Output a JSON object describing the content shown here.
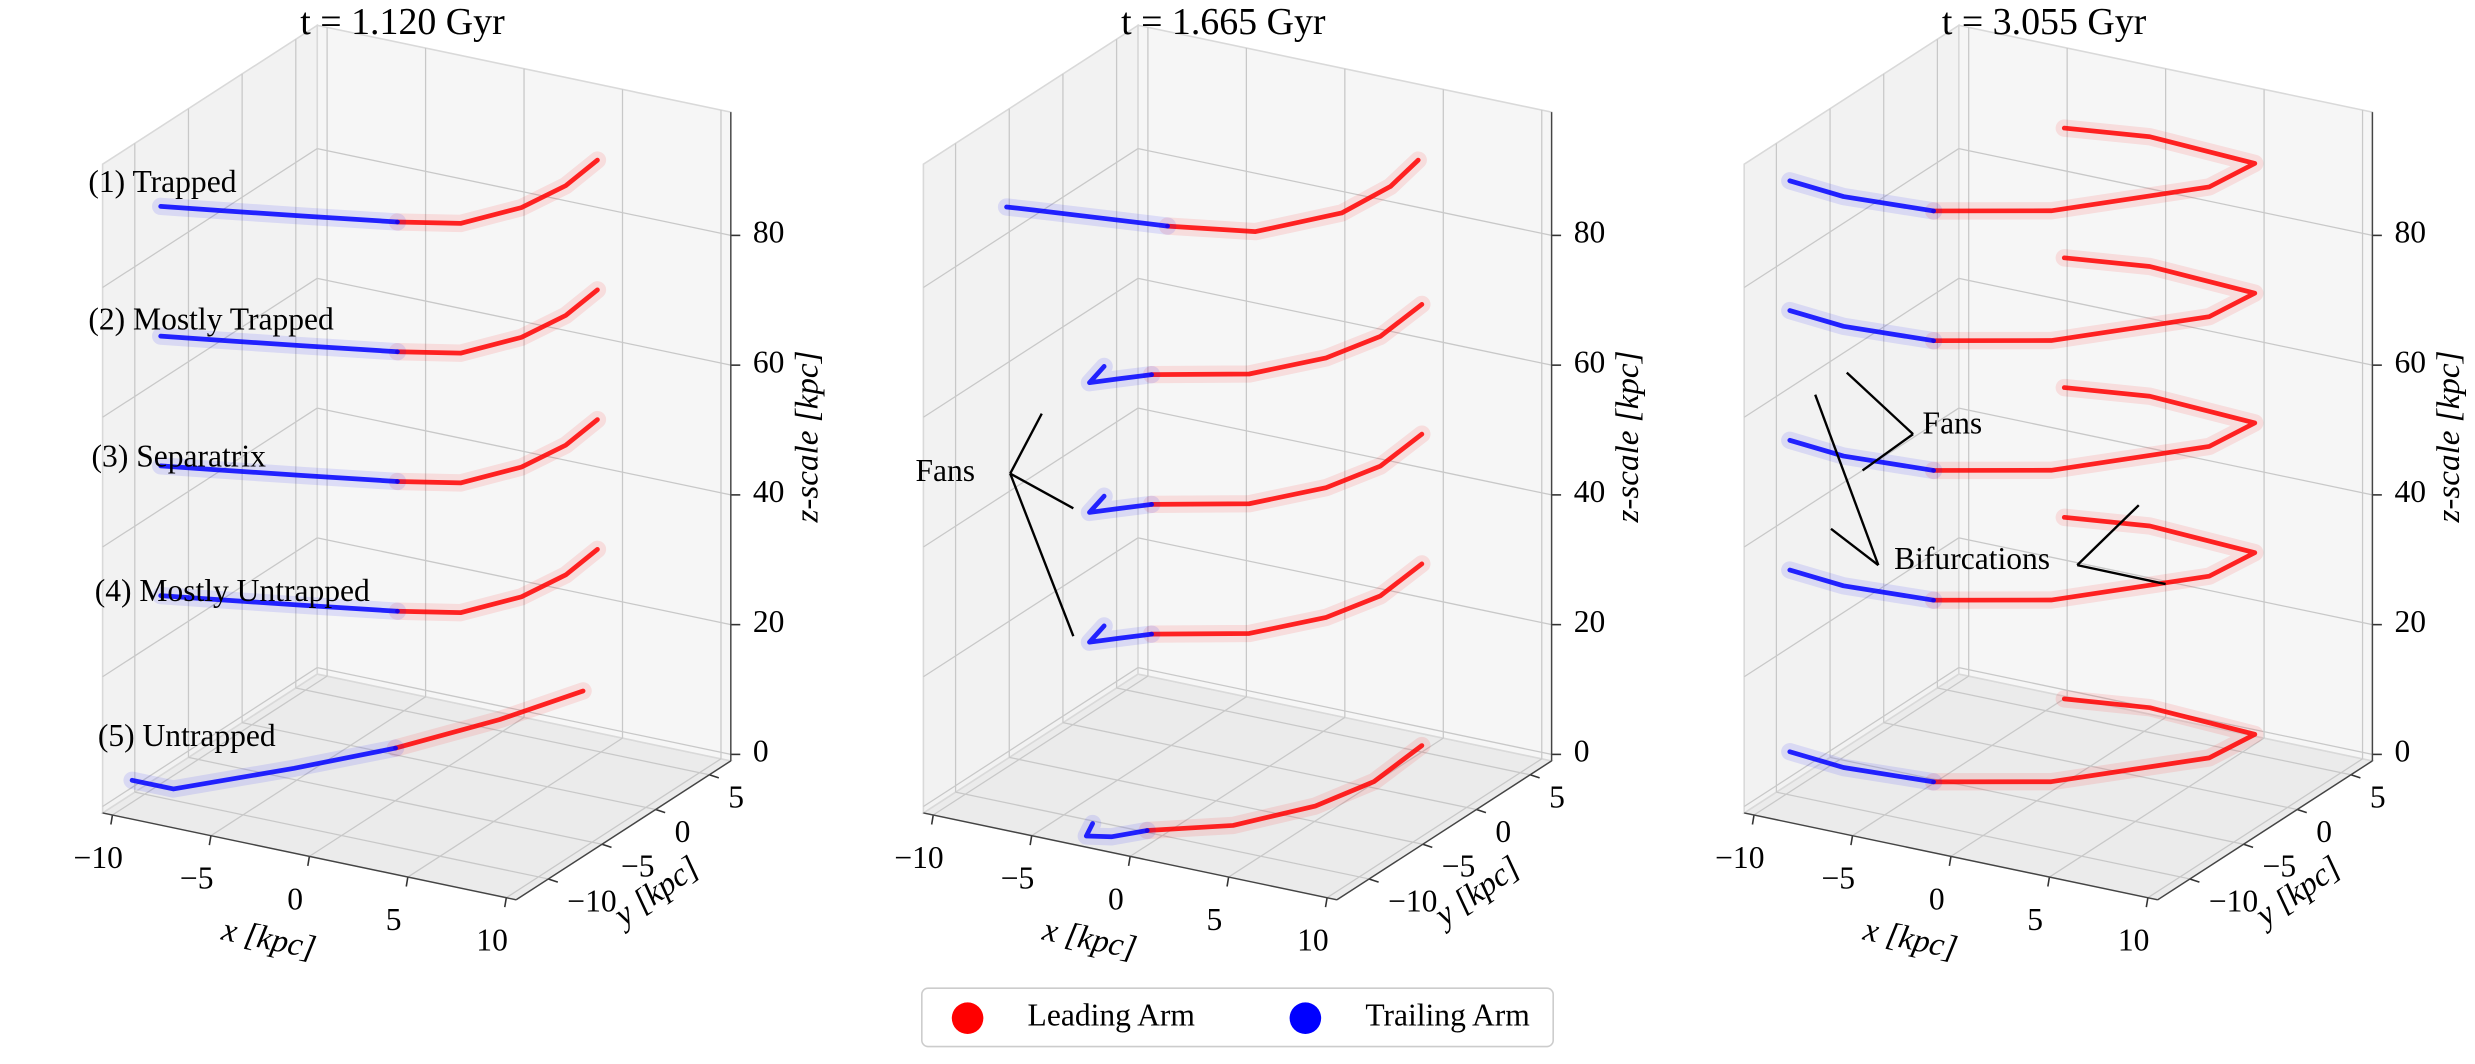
{
  "chart_data": [
    {
      "type": "scatter3d",
      "title": "t = 1.120 Gyr",
      "xlabel": "x [kpc]",
      "ylabel": "y [kpc]",
      "zlabel": "z-scale [kpc]",
      "xlim": [
        -10.5,
        10.5
      ],
      "ylim": [
        -13,
        7
      ],
      "zlim": [
        -1,
        99
      ],
      "xticks": [
        {
          "value": -10,
          "label": "−10"
        },
        {
          "value": -5,
          "label": "−5"
        },
        0,
        5,
        10
      ],
      "yticks": [
        {
          "value": -10,
          "label": "−10"
        },
        {
          "value": -5,
          "label": "−5"
        },
        0,
        5
      ],
      "zticks": [
        0,
        20,
        40,
        60,
        80
      ],
      "annotations": [
        "(1) Trapped",
        "(2) Mostly Trapped",
        "(3) Separatrix",
        "(4) Mostly Untrapped",
        "(5) Untrapped"
      ],
      "series": [
        {
          "name": "Leading Arm",
          "color": "#ff0000",
          "x": [
            0,
            2.5,
            3.9,
            4.3,
            4,
            null,
            0,
            2.5,
            3.9,
            4.3,
            4,
            null,
            0,
            2.5,
            3.9,
            4.3,
            4,
            null,
            0,
            2.5,
            3.9,
            4.3,
            4,
            null,
            -0.8,
            1.5,
            3
          ],
          "y": [
            -4.8,
            -3.5,
            -0.4,
            3,
            6.5,
            null,
            -4.8,
            -3.5,
            -0.4,
            3,
            6.5,
            null,
            -4.8,
            -3.5,
            -0.4,
            3,
            6.5,
            null,
            -4.8,
            -3.5,
            -0.4,
            3,
            6.5,
            null,
            -3.5,
            2,
            7
          ],
          "z": [
            88,
            88,
            88,
            88,
            88,
            null,
            68,
            68,
            68,
            68,
            68,
            null,
            48,
            48,
            48,
            48,
            48,
            null,
            28,
            28,
            28,
            28,
            28,
            null,
            5,
            5,
            5
          ]
        },
        {
          "name": "Trailing Arm",
          "color": "#0000ff",
          "x": [
            -10,
            -7.5,
            -4,
            0,
            null,
            -10,
            -7.5,
            -4,
            0,
            null,
            -10,
            -7.5,
            -4,
            0,
            null,
            -10,
            -7.5,
            -4,
            0,
            null,
            -9,
            -6.9,
            -3.5,
            -0.8
          ],
          "y": [
            -8.5,
            -7.6,
            -6.3,
            -4.8,
            null,
            -8.5,
            -7.6,
            -6.3,
            -4.8,
            null,
            -8.5,
            -7.6,
            -6.3,
            -4.8,
            null,
            -8.5,
            -7.6,
            -6.3,
            -4.8,
            null,
            -13,
            -13,
            -8,
            -3.5
          ],
          "z": [
            88,
            88,
            88,
            88,
            null,
            68,
            68,
            68,
            68,
            null,
            48,
            48,
            48,
            48,
            null,
            28,
            28,
            28,
            28,
            null,
            5,
            5,
            5,
            5
          ]
        }
      ]
    },
    {
      "type": "scatter3d",
      "title": "t = 1.665 Gyr",
      "xlabel": "x [kpc]",
      "ylabel": "y [kpc]",
      "zlabel": "z-scale [kpc]",
      "xlim": [
        -10.5,
        10.5
      ],
      "ylim": [
        -13,
        7
      ],
      "zlim": [
        -1,
        99
      ],
      "xticks": [
        {
          "value": -10,
          "label": "−10"
        },
        {
          "value": -5,
          "label": "−5"
        },
        0,
        5,
        10
      ],
      "yticks": [
        {
          "value": -10,
          "label": "−10"
        },
        {
          "value": -5,
          "label": "−5"
        },
        0,
        5
      ],
      "zticks": [
        0,
        20,
        40,
        60,
        80
      ],
      "annotations": [
        "Fans"
      ],
      "series": [
        {
          "name": "Leading Arm",
          "color": "#ff0000",
          "x": [
            -1.7,
            2,
            4.2,
            4.5,
            4,
            null,
            -1.2,
            2.5,
            4.5,
            5.3,
            5,
            null,
            -1.2,
            2.5,
            4.5,
            5.3,
            5,
            null,
            -1.2,
            2.5,
            4.5,
            5.3,
            5,
            null,
            -0.5,
            2.5,
            4.5,
            5.3,
            5
          ],
          "y": [
            -6.4,
            -5,
            -1,
            3,
            6.5,
            null,
            -8.8,
            -6.5,
            -3,
            0.6,
            5,
            null,
            -8.8,
            -6.5,
            -3,
            0.6,
            5,
            null,
            -8.8,
            -6.5,
            -3,
            0.6,
            5,
            null,
            -10.5,
            -8,
            -4,
            0,
            5
          ],
          "z": [
            88,
            88,
            88,
            88,
            88,
            null,
            68,
            68,
            68,
            68,
            68,
            null,
            48,
            48,
            48,
            48,
            48,
            null,
            28,
            28,
            28,
            28,
            28,
            null,
            0,
            0,
            0,
            0,
            0
          ]
        },
        {
          "name": "Trailing Arm",
          "color": "#0000ff",
          "x": [
            -9,
            -7.8,
            -4.5,
            -1.7,
            null,
            -3.5,
            -3.1,
            -2.2,
            -1.2,
            null,
            -3.5,
            -3.1,
            -2.2,
            -1.2,
            null,
            -3.5,
            -3.1,
            -2.2,
            -1.2,
            null,
            -3,
            -2.5,
            -1.5,
            -0.5
          ],
          "y": [
            -8,
            -7.7,
            -7,
            -6.4,
            null,
            -9,
            -11.1,
            -10,
            -8.8,
            null,
            -9,
            -11.1,
            -10,
            -8.8,
            null,
            -9,
            -11.1,
            -10,
            -8.8,
            null,
            -11,
            -12.5,
            -12,
            -10.5
          ],
          "z": [
            88,
            88,
            88,
            88,
            null,
            68,
            68,
            68,
            68,
            null,
            48,
            48,
            48,
            48,
            null,
            28,
            28,
            28,
            28,
            null,
            0,
            0,
            0,
            0
          ]
        }
      ]
    },
    {
      "type": "scatter3d",
      "title": "t = 3.055 Gyr",
      "xlabel": "x [kpc]",
      "ylabel": "y [kpc]",
      "zlabel": "z-scale [kpc]",
      "xlim": [
        -10.5,
        10.5
      ],
      "ylim": [
        -13,
        7
      ],
      "zlim": [
        -1,
        99
      ],
      "xticks": [
        {
          "value": -10,
          "label": "−10"
        },
        {
          "value": -5,
          "label": "−5"
        },
        0,
        5,
        10
      ],
      "yticks": [
        {
          "value": -10,
          "label": "−10"
        },
        {
          "value": -5,
          "label": "−5"
        },
        0,
        5
      ],
      "zticks": [
        0,
        20,
        40,
        60,
        80
      ],
      "annotations": [
        "Fans",
        "Bifurcations"
      ],
      "series": [
        {
          "name": "Leading Arm",
          "color": "#ff0000",
          "x": [
            -4.7,
            -0.2,
            4.45,
            4.8,
            -0.8,
            -4.6,
            null,
            -4.7,
            -0.2,
            4.45,
            4.8,
            -0.8,
            -4.6,
            null,
            -4.7,
            -0.2,
            4.45,
            4.8,
            -0.8,
            -4.6,
            null,
            -4.7,
            -0.2,
            4.45,
            4.8,
            -0.8,
            -4.6,
            null,
            -4.7,
            -0.2,
            4.45,
            4.8,
            -0.8,
            -4.6
          ],
          "y": [
            -6,
            -3.3,
            2.9,
            6.5,
            7,
            6,
            null,
            -6,
            -3.3,
            2.9,
            6.5,
            7,
            6,
            null,
            -6,
            -3.3,
            2.9,
            6.5,
            7,
            6,
            null,
            -6,
            -3.3,
            2.9,
            6.5,
            7,
            6,
            null,
            -6,
            -3.3,
            2.9,
            6.5,
            7,
            6
          ],
          "z": [
            88,
            88,
            88,
            88,
            88,
            88,
            null,
            68,
            68,
            68,
            68,
            68,
            68,
            null,
            48,
            48,
            48,
            48,
            48,
            48,
            null,
            28,
            28,
            28,
            28,
            28,
            28,
            null,
            0,
            0,
            0,
            0,
            0,
            0
          ]
        },
        {
          "name": "Trailing Arm",
          "color": "#0000ff",
          "x": [
            -12,
            -9,
            -4.7,
            null,
            -12,
            -9,
            -4.7,
            null,
            -12,
            -9,
            -4.7,
            null,
            -12,
            -9,
            -4.7,
            null,
            -12,
            -9,
            -4.7
          ],
          "y": [
            -6,
            -6.5,
            -6,
            null,
            -6,
            -6.5,
            -6,
            null,
            -6,
            -6.5,
            -6,
            null,
            -6,
            -6.5,
            -6,
            null,
            -6,
            -6.5,
            -6
          ],
          "z": [
            88,
            88,
            88,
            null,
            68,
            68,
            68,
            null,
            48,
            48,
            48,
            null,
            28,
            28,
            28,
            null,
            0,
            0,
            0
          ]
        }
      ]
    }
  ]
}
